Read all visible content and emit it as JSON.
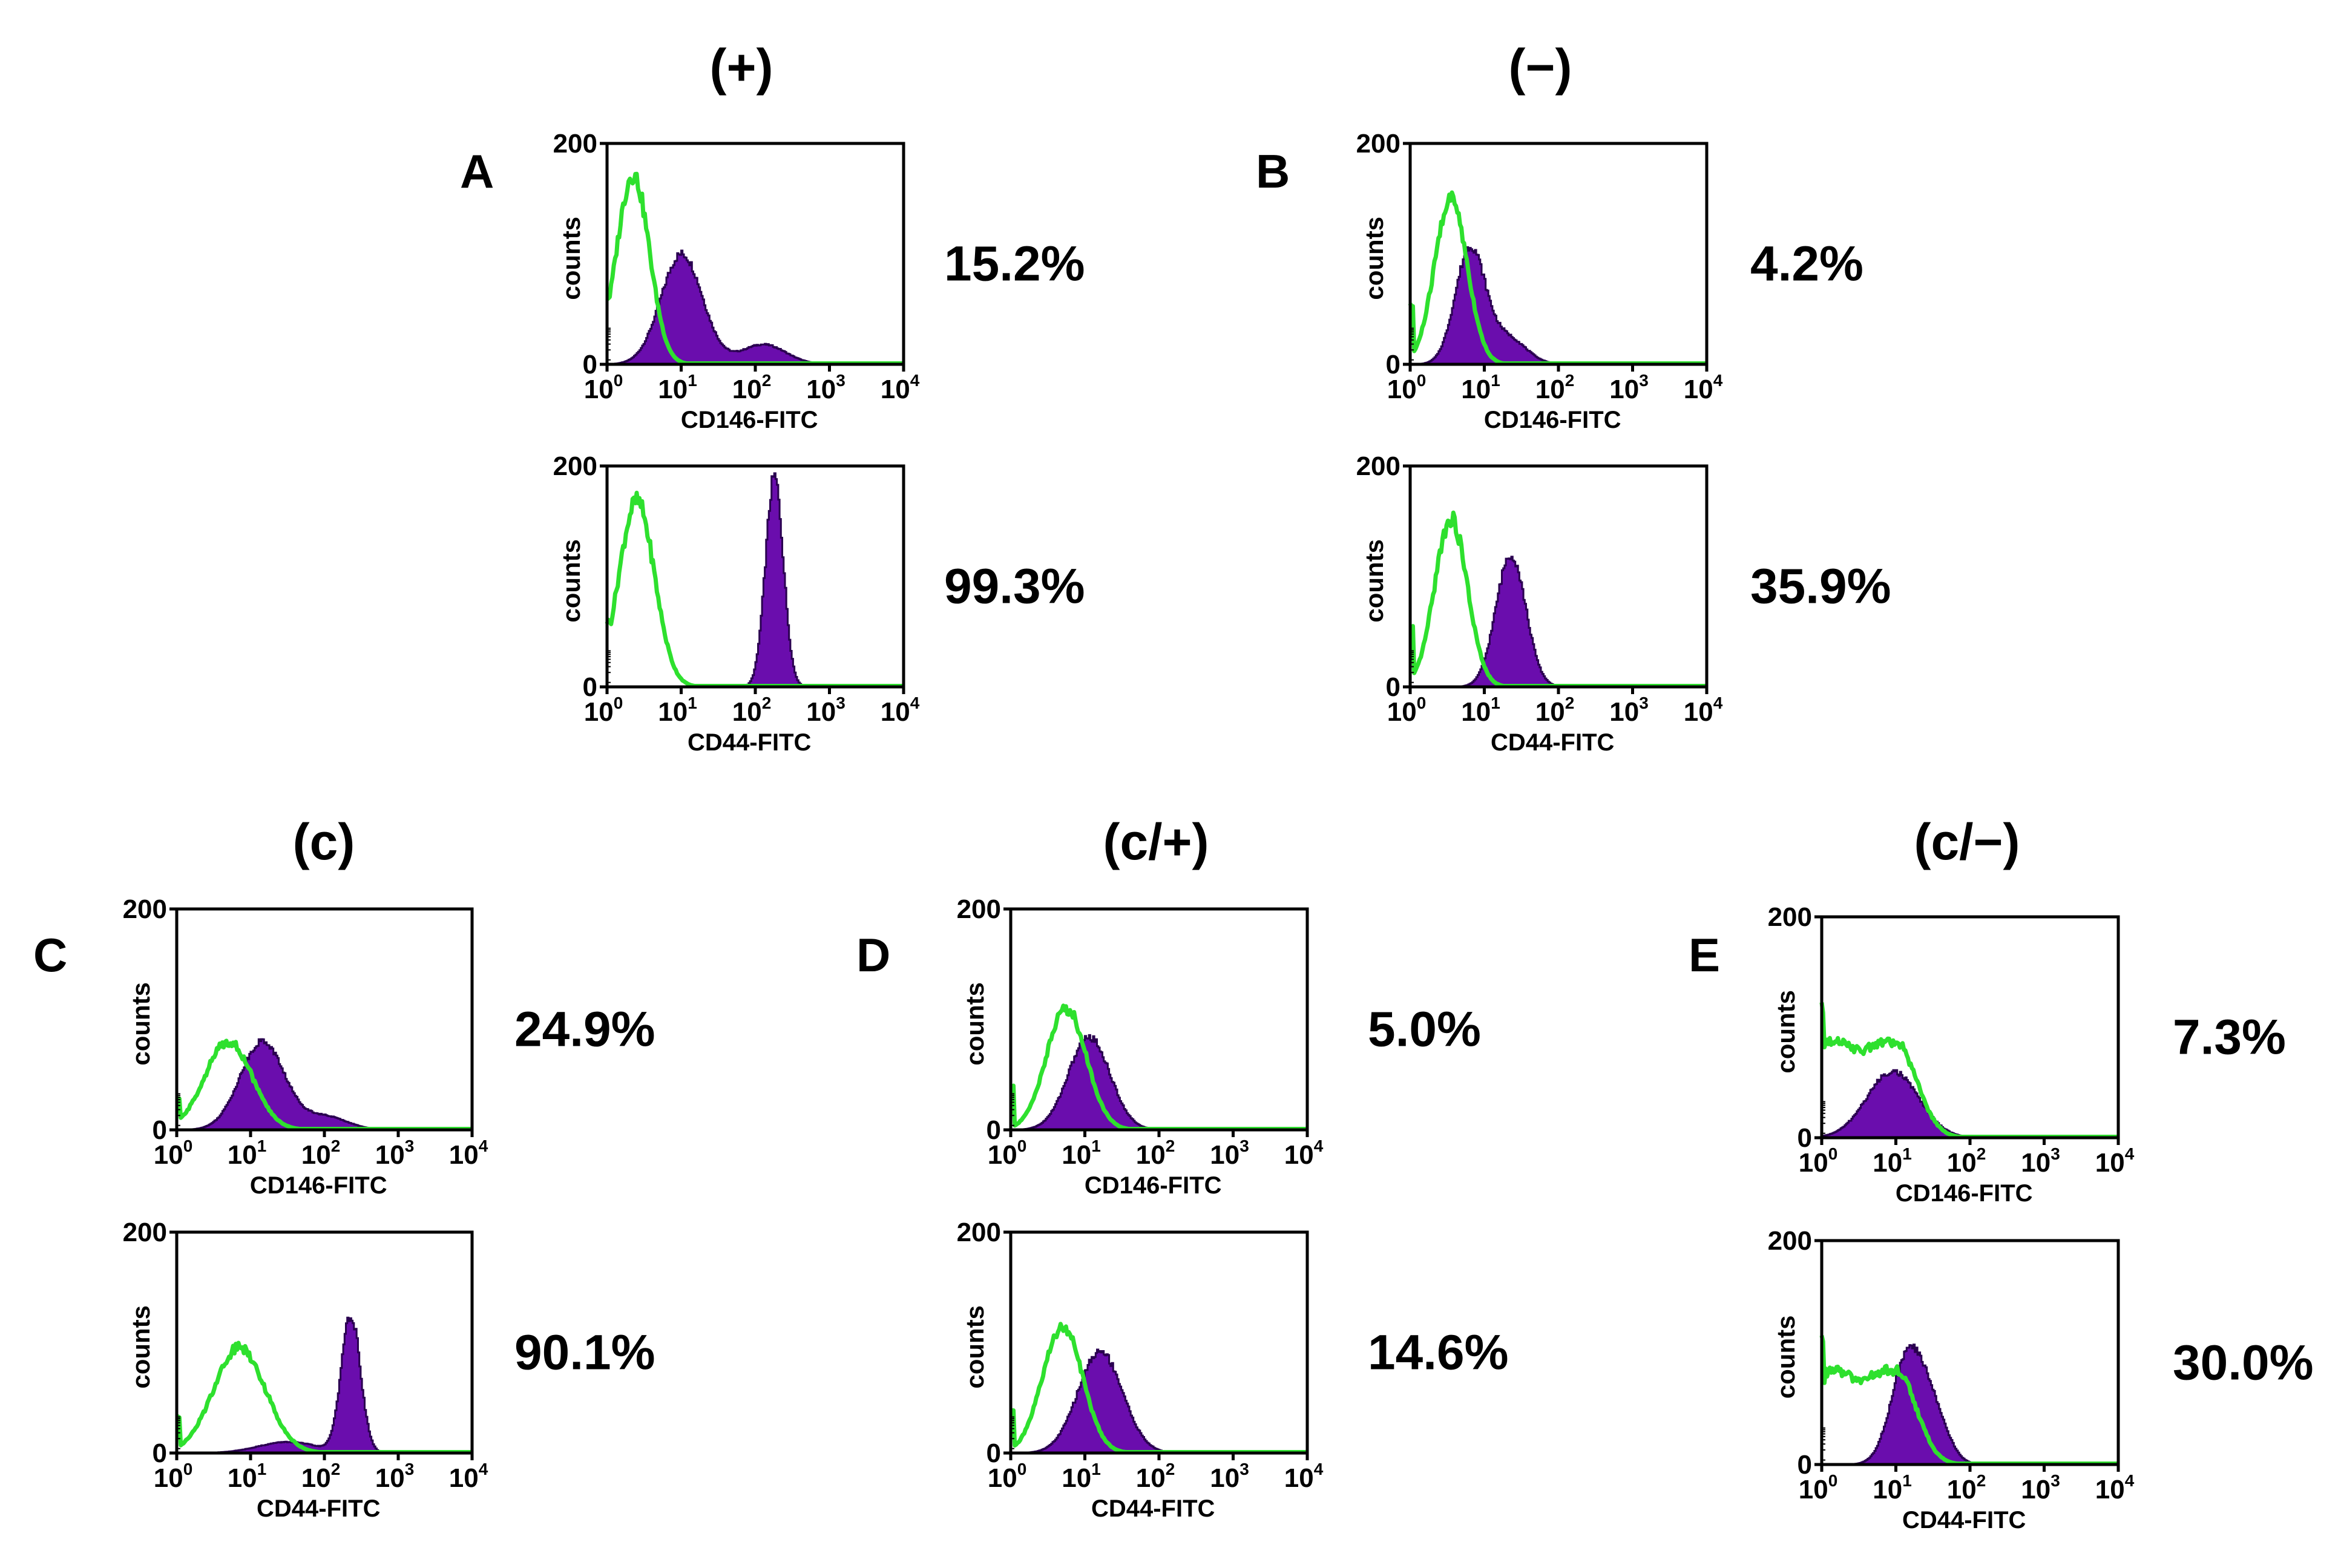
{
  "groups": [
    {
      "id": "A",
      "letter": "A",
      "title": "(+)",
      "plots": [
        {
          "xlabel": "CD146-FITC",
          "ylabel": "counts",
          "percent": "15.2%",
          "control": {
            "peak_log": 0.35,
            "width": 0.22,
            "height": 0.86
          },
          "sample": {
            "components": [
              {
                "mu": 1.0,
                "sigma": 0.28,
                "amp": 0.5
              },
              {
                "mu": 2.1,
                "sigma": 0.3,
                "amp": 0.09
              }
            ]
          }
        },
        {
          "xlabel": "CD44-FITC",
          "ylabel": "counts",
          "percent": "99.3%",
          "control": {
            "peak_log": 0.4,
            "width": 0.24,
            "height": 0.84
          },
          "sample": {
            "components": [
              {
                "mu": 2.25,
                "sigma": 0.12,
                "amp": 0.95
              }
            ]
          }
        }
      ]
    },
    {
      "id": "B",
      "letter": "B",
      "title": "(−)",
      "plots": [
        {
          "xlabel": "CD146-FITC",
          "ylabel": "counts",
          "percent": "4.2%",
          "control": {
            "peak_log": 0.55,
            "width": 0.22,
            "height": 0.75
          },
          "sample": {
            "components": [
              {
                "mu": 0.8,
                "sigma": 0.2,
                "amp": 0.52
              },
              {
                "mu": 1.3,
                "sigma": 0.25,
                "amp": 0.12
              }
            ]
          }
        },
        {
          "xlabel": "CD44-FITC",
          "ylabel": "counts",
          "percent": "35.9%",
          "control": {
            "peak_log": 0.55,
            "width": 0.22,
            "height": 0.76
          },
          "sample": {
            "components": [
              {
                "mu": 1.35,
                "sigma": 0.2,
                "amp": 0.6
              }
            ]
          }
        }
      ]
    },
    {
      "id": "C",
      "letter": "C",
      "title": "(c)",
      "plots": [
        {
          "xlabel": "CD146-FITC",
          "ylabel": "counts",
          "percent": "24.9%",
          "control": {
            "peak_log": 0.7,
            "width": 0.32,
            "height": 0.4
          },
          "sample": {
            "components": [
              {
                "mu": 1.15,
                "sigma": 0.3,
                "amp": 0.4
              },
              {
                "mu": 2.0,
                "sigma": 0.3,
                "amp": 0.06
              }
            ]
          }
        },
        {
          "xlabel": "CD44-FITC",
          "ylabel": "counts",
          "percent": "90.1%",
          "control": {
            "peak_log": 0.85,
            "width": 0.35,
            "height": 0.48
          },
          "sample": {
            "components": [
              {
                "mu": 2.35,
                "sigma": 0.13,
                "amp": 0.62
              },
              {
                "mu": 1.5,
                "sigma": 0.4,
                "amp": 0.05
              }
            ]
          }
        }
      ]
    },
    {
      "id": "D",
      "letter": "D",
      "title": "(c/+)",
      "plots": [
        {
          "xlabel": "CD146-FITC",
          "ylabel": "counts",
          "percent": "5.0%",
          "control": {
            "peak_log": 0.75,
            "width": 0.27,
            "height": 0.55
          },
          "sample": {
            "components": [
              {
                "mu": 1.05,
                "sigma": 0.28,
                "amp": 0.42
              }
            ]
          }
        },
        {
          "xlabel": "CD44-FITC",
          "ylabel": "counts",
          "percent": "14.6%",
          "control": {
            "peak_log": 0.7,
            "width": 0.27,
            "height": 0.57
          },
          "sample": {
            "components": [
              {
                "mu": 1.2,
                "sigma": 0.3,
                "amp": 0.46
              }
            ]
          }
        }
      ]
    },
    {
      "id": "E",
      "letter": "E",
      "title": "(c/−)",
      "plots": [
        {
          "xlabel": "CD146-FITC",
          "ylabel": "counts",
          "percent": "7.3%",
          "control": {
            "peak_log": 0.55,
            "width": 0.48,
            "height": 0.44,
            "flat": true
          },
          "sample": {
            "components": [
              {
                "mu": 0.95,
                "sigma": 0.35,
                "amp": 0.3
              }
            ]
          }
        },
        {
          "xlabel": "CD44-FITC",
          "ylabel": "counts",
          "percent": "30.0%",
          "control": {
            "peak_log": 0.6,
            "width": 0.45,
            "height": 0.42,
            "flat": true
          },
          "sample": {
            "components": [
              {
                "mu": 1.15,
                "sigma": 0.22,
                "amp": 0.47
              },
              {
                "mu": 1.5,
                "sigma": 0.2,
                "amp": 0.2
              }
            ]
          }
        }
      ]
    }
  ],
  "axis": {
    "y_ticks": [
      "0",
      "200"
    ],
    "x_tick_base": "10",
    "x_tick_exponents": [
      "0",
      "1",
      "2",
      "3",
      "4"
    ]
  },
  "chart_data": {
    "type": "histogram",
    "description_fields": "Flow cytometry overlay histograms; filled = stained sample, green outline = isotype control",
    "x_scale": "log10",
    "xlim": [
      1,
      10000
    ],
    "ylim": [
      0,
      200
    ],
    "ylabel": "counts",
    "panels": [
      {
        "group": "A",
        "title": "(+)",
        "marker": "CD146-FITC",
        "positive_percent": 15.2
      },
      {
        "group": "A",
        "title": "(+)",
        "marker": "CD44-FITC",
        "positive_percent": 99.3
      },
      {
        "group": "B",
        "title": "(−)",
        "marker": "CD146-FITC",
        "positive_percent": 4.2
      },
      {
        "group": "B",
        "title": "(−)",
        "marker": "CD44-FITC",
        "positive_percent": 35.9
      },
      {
        "group": "C",
        "title": "(c)",
        "marker": "CD146-FITC",
        "positive_percent": 24.9
      },
      {
        "group": "C",
        "title": "(c)",
        "marker": "CD44-FITC",
        "positive_percent": 90.1
      },
      {
        "group": "D",
        "title": "(c/+)",
        "marker": "CD146-FITC",
        "positive_percent": 5.0
      },
      {
        "group": "D",
        "title": "(c/+)",
        "marker": "CD44-FITC",
        "positive_percent": 14.6
      },
      {
        "group": "E",
        "title": "(c/−)",
        "marker": "CD146-FITC",
        "positive_percent": 7.3
      },
      {
        "group": "E",
        "title": "(c/−)",
        "marker": "CD44-FITC",
        "positive_percent": 30.0
      }
    ],
    "colors": {
      "sample_fill": "#6a0dad",
      "control_line": "#2ee02e"
    }
  }
}
